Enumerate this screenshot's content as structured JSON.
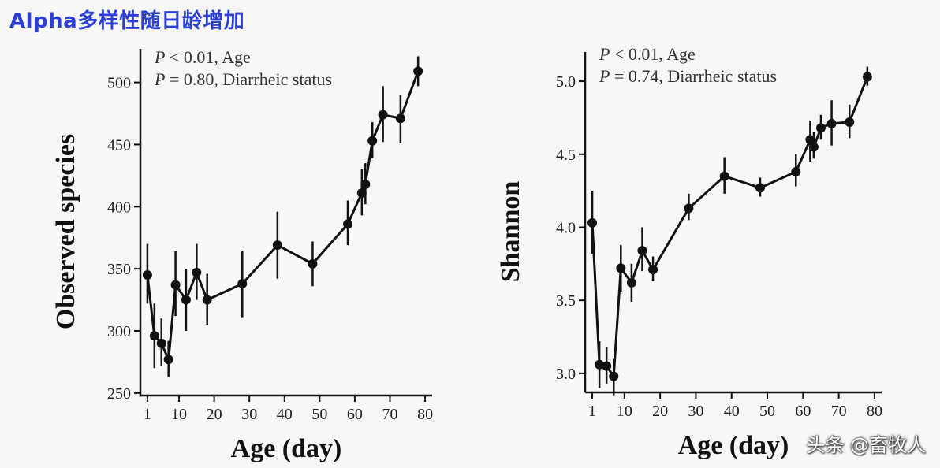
{
  "page": {
    "title": "Alpha多样性随日龄增加",
    "watermark": "头条 @畜牧人"
  },
  "chart_data": [
    {
      "type": "line",
      "xlabel": "Age (day)",
      "ylabel": "Observed species",
      "xlim": [
        -1,
        82
      ],
      "ylim": [
        248,
        527
      ],
      "xticks": [
        1,
        10,
        20,
        30,
        40,
        50,
        60,
        70,
        80
      ],
      "xtick_labels": [
        "1",
        "10",
        "20",
        "30",
        "40",
        "50",
        "60",
        "70",
        "80"
      ],
      "yticks": [
        250,
        300,
        350,
        400,
        450,
        500
      ],
      "ytick_labels": [
        "250",
        "300",
        "350",
        "400",
        "450",
        "500"
      ],
      "annotations": [
        {
          "italic": "P",
          "rest": " < 0.01, Age"
        },
        {
          "italic": "P",
          "rest": " = 0.80, Diarrheic status"
        }
      ],
      "series": [
        {
          "x": [
            1,
            3,
            5,
            7,
            9,
            12,
            15,
            18,
            28,
            38,
            48,
            58,
            62,
            63,
            65,
            68,
            73,
            78
          ],
          "y": [
            345,
            296,
            290,
            277,
            337,
            325,
            347,
            325,
            338,
            369,
            354,
            386,
            411,
            418,
            453,
            474,
            471,
            509
          ],
          "lo": [
            322,
            270,
            272,
            263,
            312,
            300,
            325,
            305,
            311,
            342,
            336,
            369,
            393,
            402,
            439,
            452,
            451,
            497
          ],
          "hi": [
            370,
            322,
            310,
            292,
            364,
            350,
            370,
            346,
            364,
            396,
            372,
            405,
            430,
            435,
            468,
            497,
            490,
            521
          ]
        }
      ]
    },
    {
      "type": "line",
      "xlabel": "Age (day)",
      "ylabel": "Shannon",
      "xlim": [
        -1,
        82
      ],
      "ylim": [
        2.87,
        5.2
      ],
      "xticks": [
        1,
        10,
        20,
        30,
        40,
        50,
        60,
        70,
        80
      ],
      "xtick_labels": [
        "1",
        "10",
        "20",
        "30",
        "40",
        "50",
        "60",
        "70",
        "80"
      ],
      "yticks": [
        3.0,
        3.5,
        4.0,
        4.5,
        5.0
      ],
      "ytick_labels": [
        "3.0",
        "3.5",
        "4.0",
        "4.5",
        "5.0"
      ],
      "annotations": [
        {
          "italic": "P",
          "rest": " < 0.01, Age"
        },
        {
          "italic": "P",
          "rest": " = 0.74, Diarrheic status"
        }
      ],
      "series": [
        {
          "x": [
            1,
            3,
            5,
            7,
            9,
            12,
            15,
            18,
            28,
            38,
            48,
            58,
            62,
            63,
            65,
            68,
            73,
            78
          ],
          "y": [
            4.03,
            3.06,
            3.05,
            2.98,
            3.72,
            3.62,
            3.84,
            3.71,
            4.13,
            4.35,
            4.27,
            4.38,
            4.6,
            4.55,
            4.68,
            4.71,
            4.72,
            5.03
          ],
          "lo": [
            3.82,
            2.9,
            2.93,
            2.85,
            3.56,
            3.49,
            3.7,
            3.63,
            4.05,
            4.23,
            4.21,
            4.28,
            4.45,
            4.47,
            4.6,
            4.56,
            4.61,
            4.97
          ],
          "hi": [
            4.25,
            3.22,
            3.18,
            3.1,
            3.88,
            3.75,
            4.0,
            3.8,
            4.23,
            4.48,
            4.34,
            4.5,
            4.73,
            4.65,
            4.77,
            4.87,
            4.84,
            5.1
          ]
        }
      ]
    }
  ]
}
